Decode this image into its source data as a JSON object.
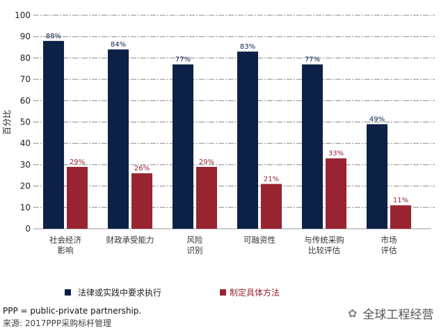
{
  "chart_data": {
    "type": "bar",
    "ylabel": "百分比",
    "ylim": [
      0,
      100
    ],
    "yticks": [
      0,
      10,
      20,
      30,
      40,
      50,
      60,
      70,
      80,
      90,
      100
    ],
    "grid": true,
    "legend_position": "bottom",
    "categories": [
      [
        "社会经济",
        "影响"
      ],
      [
        "财政承受能力"
      ],
      [
        "风险",
        "识别"
      ],
      [
        "可融资性"
      ],
      [
        "与传统采购",
        "比较评估"
      ],
      [
        "市场",
        "评估"
      ]
    ],
    "series": [
      {
        "name": "法律或实践中要求执行",
        "color": "#0d2147",
        "values": [
          88,
          84,
          77,
          83,
          77,
          49
        ],
        "labels": [
          "88%",
          "84%",
          "77%",
          "83%",
          "77%",
          "49%"
        ]
      },
      {
        "name": "制定具体方法",
        "color": "#982431",
        "values": [
          29,
          26,
          29,
          21,
          33,
          11
        ],
        "labels": [
          "29%",
          "26%",
          "29%",
          "21%",
          "33%",
          "11%"
        ]
      }
    ]
  },
  "footer": {
    "note": "PPP = public-private partnership.",
    "source": "来源: 2017PPP采购标杆管理"
  },
  "watermark": "全球工程经营"
}
